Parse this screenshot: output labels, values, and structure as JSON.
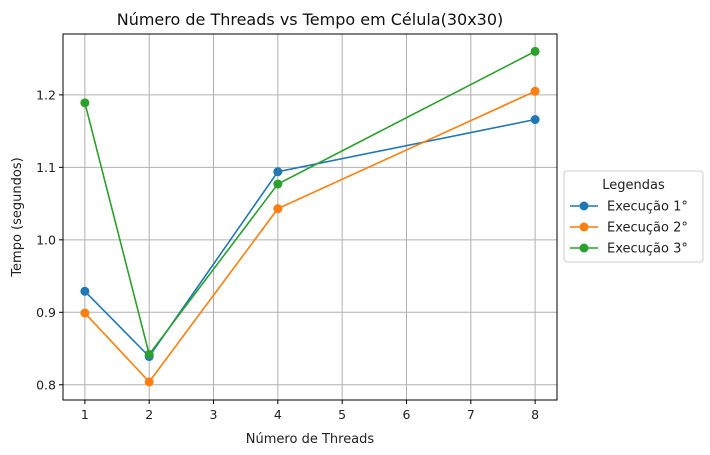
{
  "chart_data": {
    "type": "line",
    "title": "Número de Threads vs Tempo em Célula(30x30)",
    "xlabel": "Número de Threads",
    "ylabel": "Tempo (segundos)",
    "x": [
      1,
      2,
      4,
      8
    ],
    "xticks": [
      1,
      2,
      3,
      4,
      5,
      6,
      7,
      8
    ],
    "yticks": [
      0.8,
      0.9,
      1.0,
      1.1,
      1.2
    ],
    "xlim": [
      0.66,
      8.34
    ],
    "ylim": [
      0.779,
      1.284
    ],
    "grid": true,
    "markers": "circle",
    "legend": {
      "title": "Legendas",
      "placement": "outside-right"
    },
    "series": [
      {
        "name": "Execução 1°",
        "color": "#1f77b4",
        "values": [
          0.929,
          0.839,
          1.094,
          1.166
        ]
      },
      {
        "name": "Execução 2°",
        "color": "#ff7f0e",
        "values": [
          0.899,
          0.804,
          1.043,
          1.205
        ]
      },
      {
        "name": "Execução 3°",
        "color": "#2ca02c",
        "values": [
          1.189,
          0.842,
          1.077,
          1.26
        ]
      }
    ]
  }
}
